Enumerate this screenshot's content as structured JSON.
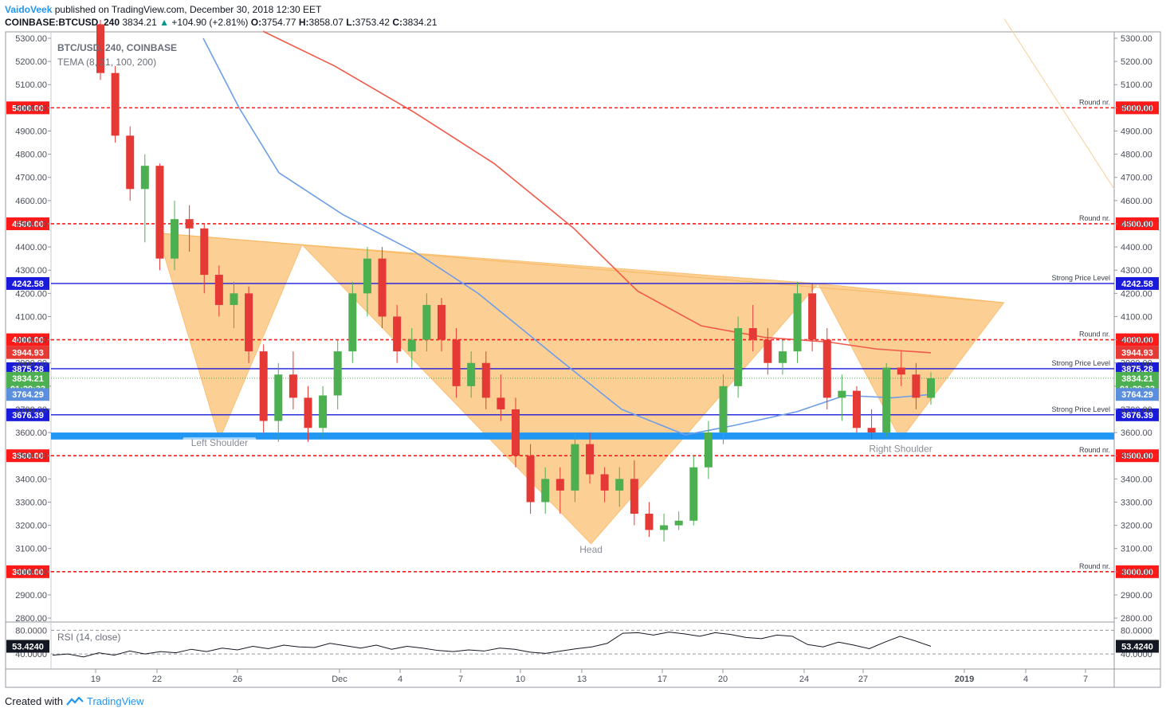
{
  "header": {
    "author": "VaidoVeek",
    "published": "published on TradingView.com, December 30, 2018 12:30 EET",
    "symbol_line": "COINBASE:BTCUSD, 240",
    "last": "3834.21",
    "change": "+104.90 (+2.81%)",
    "o_label": "O:",
    "o": "3754.77",
    "h_label": "H:",
    "h": "3858.07",
    "l_label": "L:",
    "l": "3753.42",
    "c_label": "C:",
    "c": "3834.21"
  },
  "legend": {
    "line1": "BTC/USD, 240, COINBASE",
    "line2": "TEMA (8, 21, 100, 200)"
  },
  "rsi_legend": "RSI (14, close)",
  "footer": {
    "created": "Created with",
    "brand": "TradingView"
  },
  "colors": {
    "bull": "#4caf50",
    "bear": "#e53935",
    "ema_red": "#f05a4a",
    "ema_blue": "#6c9ee8",
    "pattern": "#fbbf72",
    "support_band": "#2196f3",
    "round_line": "#ff1a1a",
    "strong_line": "#1a1adb"
  },
  "chart_data": {
    "type": "candlestick",
    "title": "BTC/USD, 240, COINBASE",
    "ylim": [
      2750,
      5330
    ],
    "x_ticks": [
      "19",
      "22",
      "26",
      "Dec",
      "4",
      "7",
      "10",
      "13",
      "17",
      "20",
      "24",
      "27",
      "2019",
      "4",
      "7"
    ],
    "y_ticks": [
      "5300.00",
      "5200.00",
      "5100.00",
      "5000.00",
      "4900.00",
      "4800.00",
      "4700.00",
      "4600.00",
      "4500.00",
      "4400.00",
      "4300.00",
      "4200.00",
      "4100.00",
      "4000.00",
      "3900.00",
      "3800.00",
      "3700.00",
      "3600.00",
      "3500.00",
      "3400.00",
      "3300.00",
      "3200.00",
      "3100.00",
      "3000.00",
      "2900.00",
      "2800.00"
    ],
    "horizontal_levels": [
      {
        "price": 5000,
        "label": "5000.00",
        "style": "round",
        "note": "Round nr."
      },
      {
        "price": 4500,
        "label": "4500.00",
        "style": "round",
        "note": "Round nr."
      },
      {
        "price": 4242.58,
        "label": "4242.58",
        "style": "strong",
        "note": "Strong Price Level"
      },
      {
        "price": 4000,
        "label": "4000.00",
        "style": "round",
        "note": "Round nr."
      },
      {
        "price": 3875.28,
        "label": "3875.28",
        "style": "strong",
        "note": "Strong Price Level"
      },
      {
        "price": 3676.39,
        "label": "3676.39",
        "style": "strong",
        "note": "Strong Price Level"
      },
      {
        "price": 3500,
        "label": "3500.00",
        "style": "round",
        "note": "Round nr."
      },
      {
        "price": 3000,
        "label": "3000.00",
        "style": "round",
        "note": "Round nr."
      }
    ],
    "price_tags": [
      {
        "price": 3944.93,
        "label": "3944.93",
        "color": "#e53935"
      },
      {
        "price": 3834.21,
        "label": "3834.21",
        "color": "#4caf50"
      },
      {
        "price": 3790,
        "label": "01:29:33",
        "color": "#4caf50"
      },
      {
        "price": 3764.29,
        "label": "3764.29",
        "color": "#5b8fdd"
      }
    ],
    "support_band": [
      3570,
      3600
    ],
    "pattern_labels": [
      {
        "text": "Left Shoulder",
        "x": "Nov 25",
        "y": 3545
      },
      {
        "text": "Head",
        "x": "Dec 13",
        "y": 3085
      },
      {
        "text": "Right Shoulder",
        "x": "Dec 28",
        "y": 3520
      }
    ],
    "pattern_points": {
      "left_shoulder": [
        [
          "Nov 22",
          4460
        ],
        [
          "Nov 25",
          3570
        ],
        [
          "Nov 29",
          4410
        ]
      ],
      "head": [
        [
          "Nov 29",
          4410
        ],
        [
          "Dec 13",
          3120
        ],
        [
          "Dec 24",
          4242
        ]
      ],
      "right_shoulder": [
        [
          "Dec 24",
          4242
        ],
        [
          "Dec 28",
          3570
        ],
        [
          "Jan 2",
          4160
        ]
      ]
    },
    "series": [
      {
        "name": "BTC/USD",
        "kind": "candles",
        "ohlc_approx": [
          [
            5360,
            5380,
            5120,
            5150
          ],
          [
            5150,
            5180,
            4850,
            4880
          ],
          [
            4880,
            4920,
            4600,
            4650
          ],
          [
            4650,
            4800,
            4420,
            4750
          ],
          [
            4750,
            4760,
            4300,
            4350
          ],
          [
            4350,
            4600,
            4300,
            4520
          ],
          [
            4520,
            4580,
            4380,
            4480
          ],
          [
            4480,
            4500,
            4200,
            4280
          ],
          [
            4280,
            4320,
            4100,
            4150
          ],
          [
            4150,
            4250,
            4050,
            4200
          ],
          [
            4200,
            4230,
            3900,
            3950
          ],
          [
            3950,
            3980,
            3600,
            3650
          ],
          [
            3650,
            3900,
            3560,
            3850
          ],
          [
            3850,
            3950,
            3700,
            3750
          ],
          [
            3750,
            3800,
            3560,
            3620
          ],
          [
            3620,
            3800,
            3580,
            3760
          ],
          [
            3760,
            4000,
            3700,
            3950
          ],
          [
            3950,
            4250,
            3900,
            4200
          ],
          [
            4200,
            4400,
            4100,
            4350
          ],
          [
            4350,
            4400,
            4050,
            4100
          ],
          [
            4100,
            4150,
            3900,
            3950
          ],
          [
            3950,
            4050,
            3880,
            4000
          ],
          [
            4000,
            4200,
            3950,
            4150
          ],
          [
            4150,
            4180,
            3950,
            4000
          ],
          [
            4000,
            4050,
            3750,
            3800
          ],
          [
            3800,
            3950,
            3750,
            3900
          ],
          [
            3900,
            3950,
            3700,
            3750
          ],
          [
            3750,
            3850,
            3650,
            3700
          ],
          [
            3700,
            3750,
            3450,
            3500
          ],
          [
            3500,
            3550,
            3250,
            3300
          ],
          [
            3300,
            3450,
            3250,
            3400
          ],
          [
            3400,
            3450,
            3250,
            3350
          ],
          [
            3350,
            3600,
            3300,
            3550
          ],
          [
            3550,
            3600,
            3380,
            3420
          ],
          [
            3420,
            3450,
            3300,
            3350
          ],
          [
            3350,
            3450,
            3280,
            3400
          ],
          [
            3400,
            3480,
            3200,
            3250
          ],
          [
            3250,
            3300,
            3150,
            3180
          ],
          [
            3180,
            3250,
            3130,
            3200
          ],
          [
            3200,
            3260,
            3180,
            3220
          ],
          [
            3220,
            3500,
            3200,
            3450
          ],
          [
            3450,
            3650,
            3400,
            3600
          ],
          [
            3600,
            3850,
            3550,
            3800
          ],
          [
            3800,
            4100,
            3750,
            4050
          ],
          [
            4050,
            4150,
            3950,
            4000
          ],
          [
            4000,
            4050,
            3850,
            3900
          ],
          [
            3900,
            4000,
            3850,
            3950
          ],
          [
            3950,
            4250,
            3900,
            4200
          ],
          [
            4200,
            4240,
            3950,
            4000
          ],
          [
            4000,
            4050,
            3700,
            3750
          ],
          [
            3750,
            3850,
            3650,
            3780
          ],
          [
            3780,
            3800,
            3600,
            3620
          ],
          [
            3620,
            3700,
            3570,
            3600
          ],
          [
            3600,
            3900,
            3580,
            3880
          ],
          [
            3880,
            3950,
            3800,
            3850
          ],
          [
            3850,
            3900,
            3700,
            3750
          ],
          [
            3750,
            3860,
            3720,
            3834
          ]
        ]
      },
      {
        "name": "TEMA (8, 21, 100, 200) - red",
        "kind": "line"
      },
      {
        "name": "TEMA (8, 21, 100, 200) - blue",
        "kind": "line"
      }
    ],
    "rsi": {
      "label": "RSI (14, close)",
      "value": "53.4240",
      "ticks": [
        "80.0000",
        "40.0000"
      ],
      "ylim": [
        20,
        90
      ],
      "values_approx": [
        38,
        40,
        35,
        42,
        38,
        45,
        40,
        44,
        42,
        48,
        44,
        50,
        47,
        53,
        49,
        55,
        52,
        51,
        58,
        54,
        50,
        55,
        48,
        53,
        50,
        46,
        44,
        47,
        45,
        50,
        48,
        43,
        41,
        45,
        49,
        52,
        58,
        75,
        76,
        72,
        77,
        74,
        70,
        76,
        73,
        68,
        66,
        72,
        70,
        56,
        52,
        60,
        55,
        49,
        60,
        70,
        62,
        53
      ]
    }
  }
}
